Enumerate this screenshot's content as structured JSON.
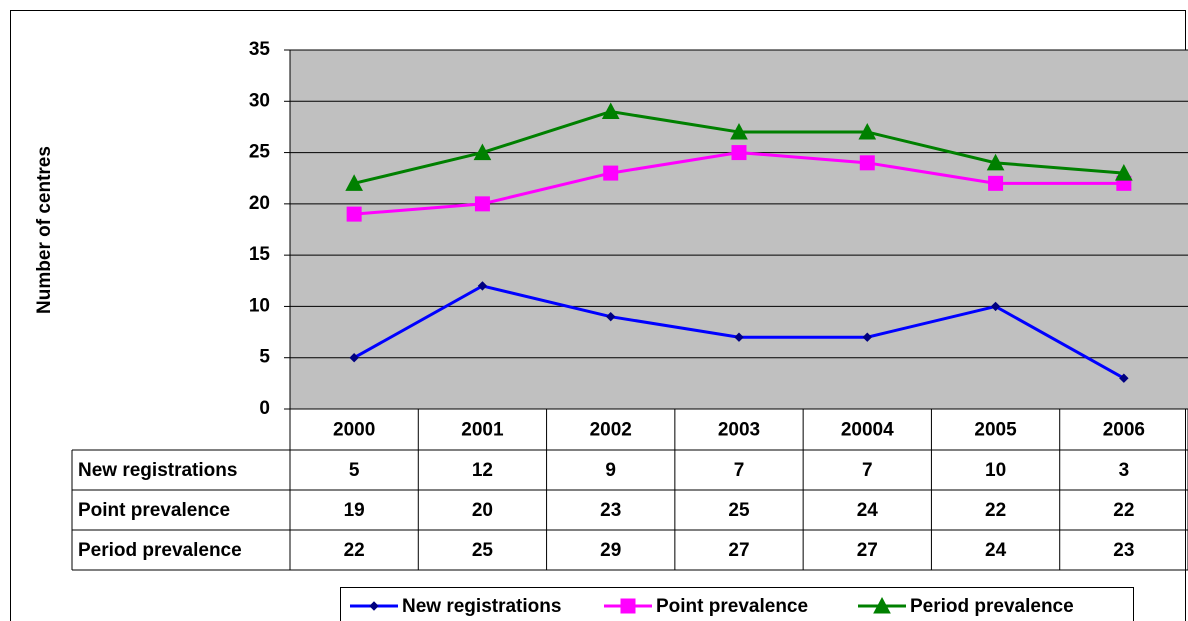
{
  "chart_data": {
    "type": "line",
    "y_label": "Number of centres",
    "categories": [
      "2000",
      "2001",
      "2002",
      "2003",
      "20004",
      "2005",
      "2006"
    ],
    "series": [
      {
        "name": "New registrations",
        "color": "#0000ff",
        "marker": "diamond",
        "values": [
          5,
          12,
          9,
          7,
          7,
          10,
          3
        ]
      },
      {
        "name": "Point prevalence",
        "color": "#ff00ff",
        "marker": "square",
        "values": [
          19,
          20,
          23,
          25,
          24,
          22,
          22
        ]
      },
      {
        "name": "Period prevalence",
        "color": "#008000",
        "marker": "triangle",
        "values": [
          22,
          25,
          29,
          27,
          27,
          24,
          23
        ]
      }
    ],
    "ylim": [
      0,
      35
    ],
    "yticks": [
      0,
      5,
      10,
      15,
      20,
      25,
      30,
      35
    ],
    "grid": true,
    "plot_background": "#c0c0c0",
    "legend": "bottom",
    "data_table": true
  }
}
